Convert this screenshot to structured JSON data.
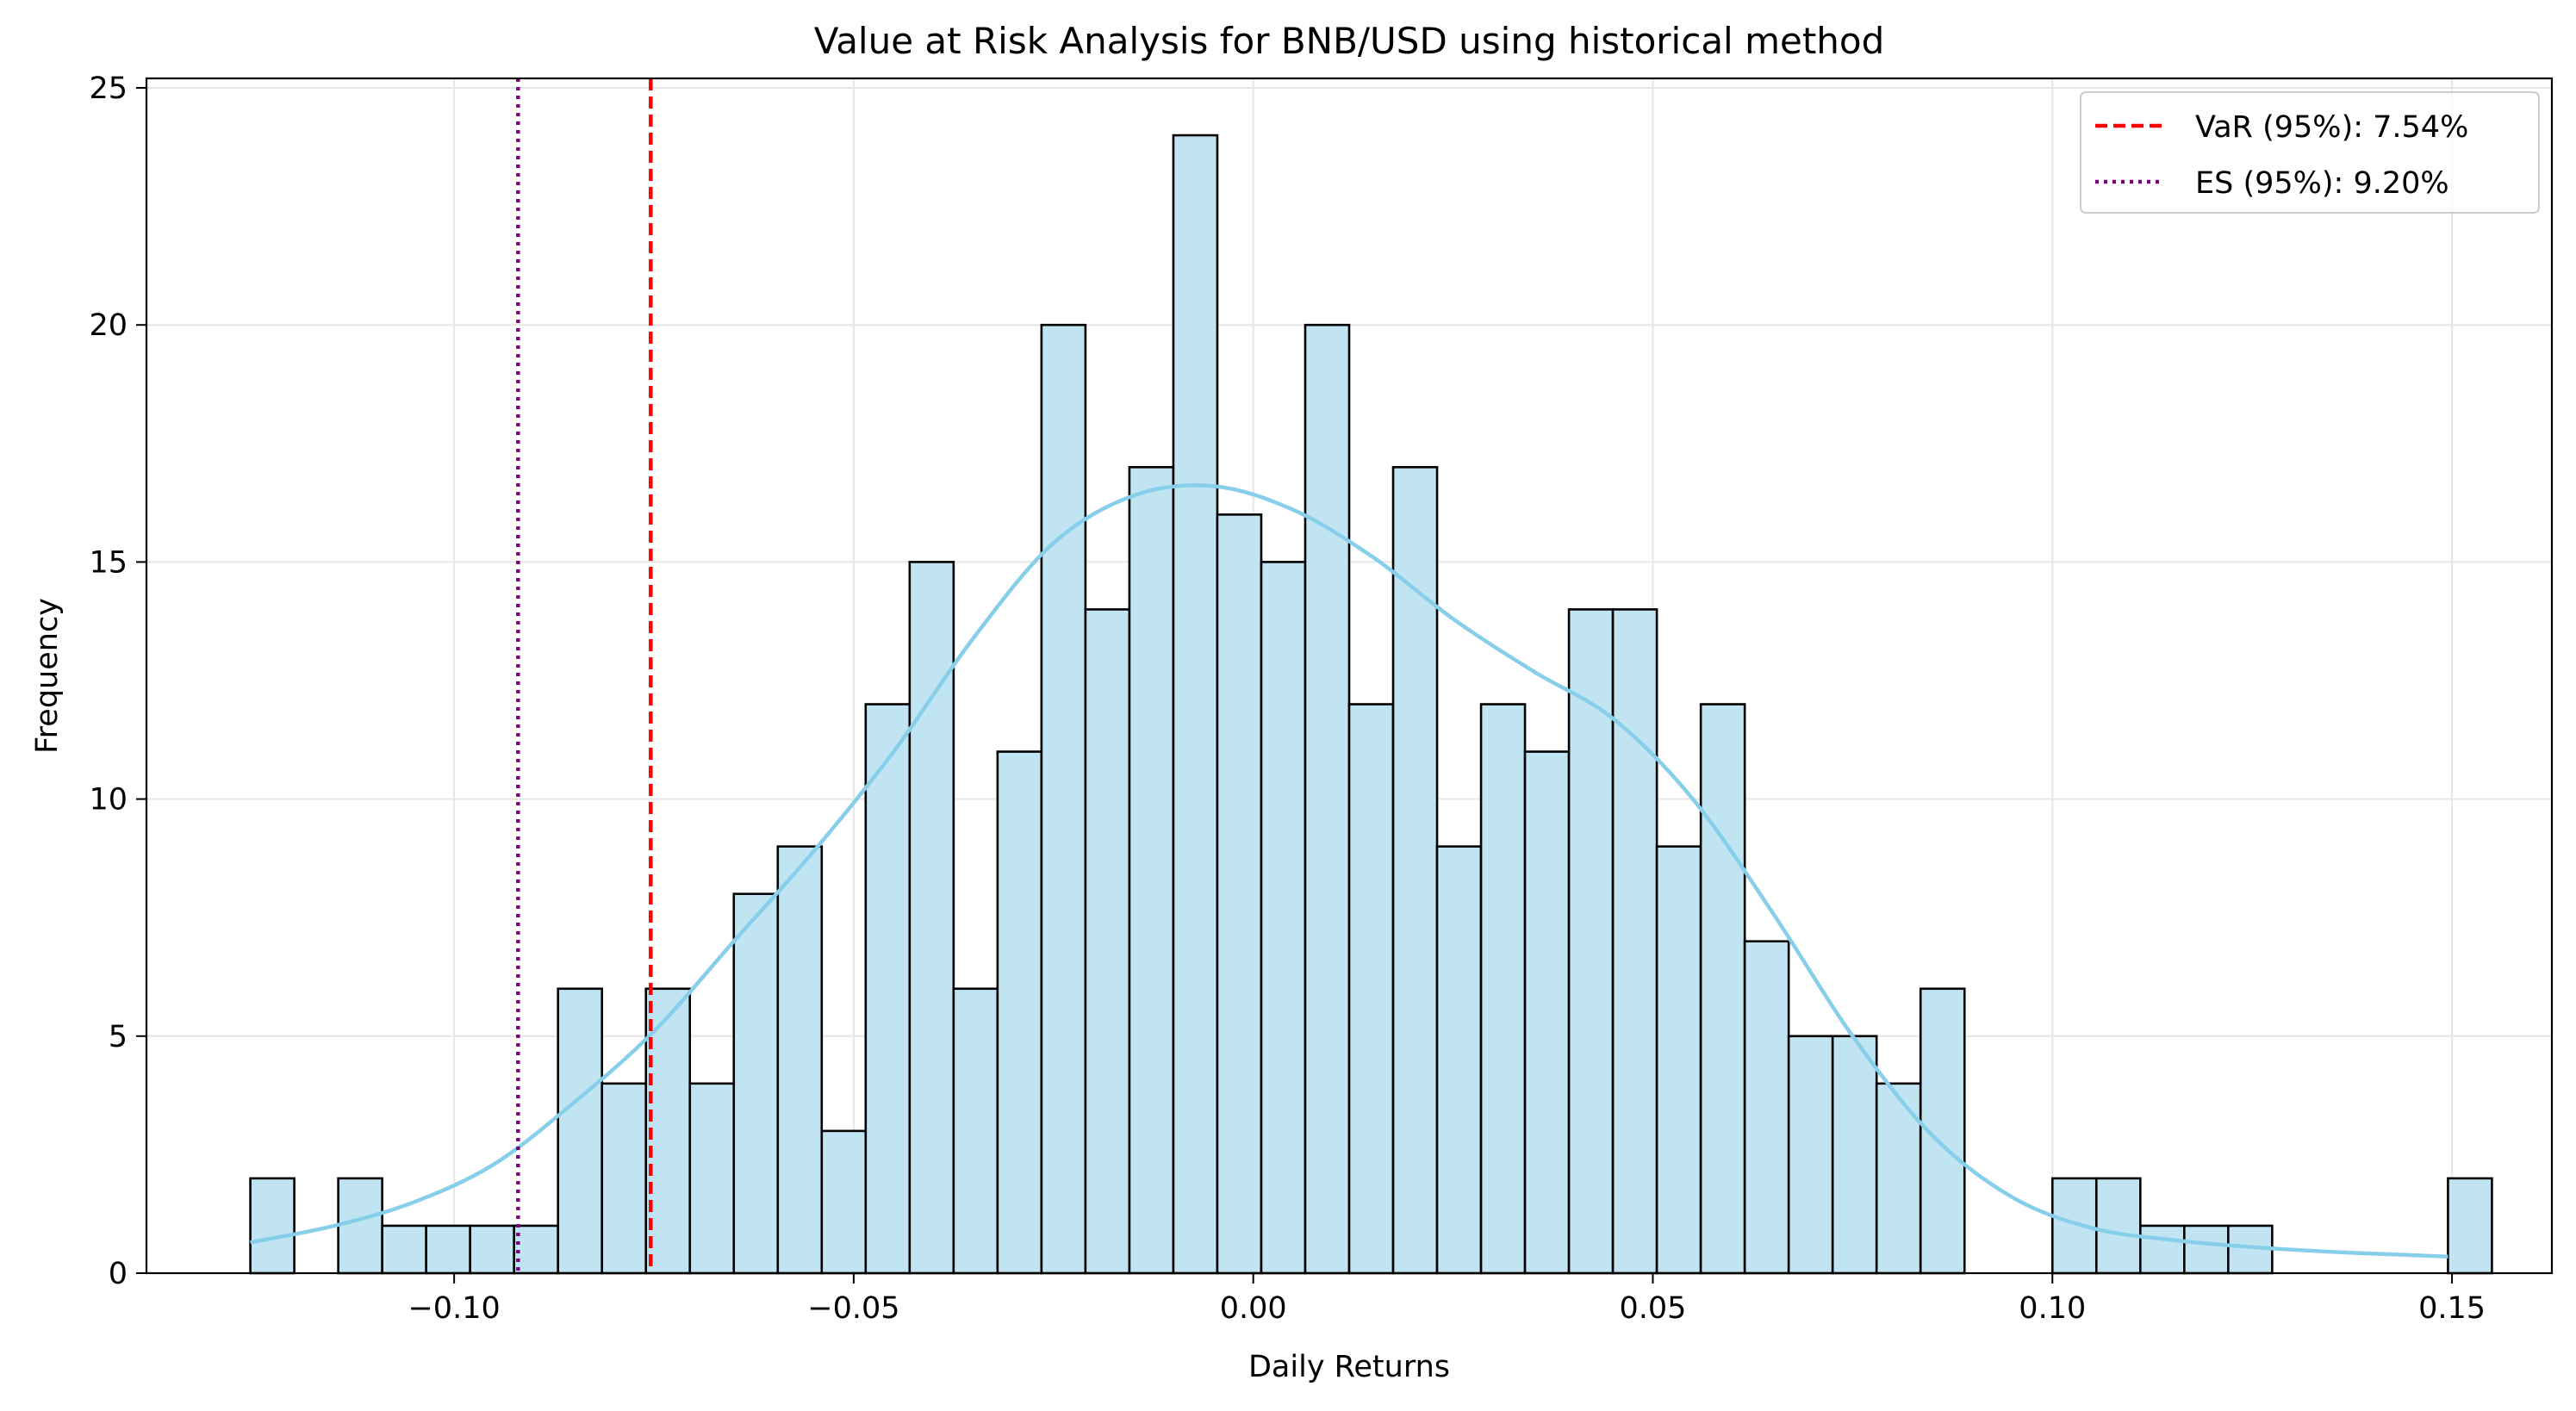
{
  "chart_data": {
    "type": "bar",
    "title": "Value at Risk Analysis for BNB/USD using historical method",
    "xlabel": "Daily Returns",
    "ylabel": "Frequency",
    "xlim": [
      -0.1385,
      0.1625
    ],
    "ylim": [
      0,
      25.2
    ],
    "xticks": [
      -0.1,
      -0.05,
      0.0,
      0.05,
      0.1,
      0.15
    ],
    "xtick_labels": [
      "−0.10",
      "−0.05",
      "0.00",
      "0.05",
      "0.10",
      "0.15"
    ],
    "yticks": [
      0,
      5,
      10,
      15,
      20,
      25
    ],
    "ytick_labels": [
      "0",
      "5",
      "10",
      "15",
      "20",
      "25"
    ],
    "grid": true,
    "bins": {
      "start": -0.1255,
      "width": 0.0055,
      "counts": [
        2,
        0,
        2,
        1,
        1,
        1,
        1,
        6,
        4,
        6,
        4,
        8,
        9,
        3,
        12,
        15,
        6,
        11,
        20,
        14,
        17,
        24,
        16,
        15,
        20,
        12,
        17,
        9,
        12,
        11,
        14,
        14,
        9,
        12,
        7,
        5,
        5,
        4,
        6,
        0,
        0,
        2,
        2,
        1,
        1,
        1,
        0,
        0,
        0,
        0,
        2
      ]
    },
    "kde": {
      "x": [
        -0.1255,
        -0.115,
        -0.105,
        -0.095,
        -0.085,
        -0.075,
        -0.065,
        -0.055,
        -0.045,
        -0.035,
        -0.025,
        -0.015,
        -0.005,
        0.005,
        0.015,
        0.025,
        0.035,
        0.045,
        0.055,
        0.065,
        0.075,
        0.085,
        0.095,
        0.105,
        0.115,
        0.125,
        0.135,
        0.145,
        0.1495
      ],
      "y": [
        0.65,
        1.0,
        1.5,
        2.3,
        3.6,
        5.1,
        7.0,
        8.9,
        11.0,
        13.4,
        15.4,
        16.4,
        16.6,
        16.1,
        15.1,
        13.8,
        12.7,
        11.7,
        10.0,
        7.6,
        5.0,
        2.9,
        1.6,
        0.95,
        0.7,
        0.55,
        0.45,
        0.38,
        0.35
      ]
    },
    "var_line": {
      "x": -0.0754,
      "label": "VaR (95%): 7.54%",
      "color": "#ff0000",
      "style": "dashed"
    },
    "es_line": {
      "x": -0.092,
      "label": "ES (95%): 9.20%",
      "color": "#800080",
      "style": "dotted"
    },
    "legend_position": "top-right",
    "colors": {
      "bar_fill": "#c1e4f3",
      "bar_edge": "#000000",
      "kde": "#87ceeb",
      "grid": "#e6e6e6"
    }
  }
}
